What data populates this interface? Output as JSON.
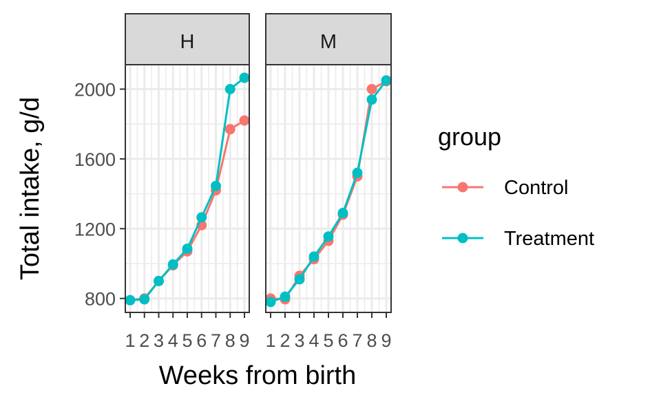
{
  "chart_data": {
    "type": "line",
    "facet_by": "panel",
    "panels": [
      "H",
      "M"
    ],
    "x": [
      1,
      2,
      3,
      4,
      5,
      6,
      7,
      8,
      9
    ],
    "xlabel": "Weeks from birth",
    "ylabel": "Total intake, g/d",
    "ylim": [
      720,
      2140
    ],
    "yticks": [
      800,
      1200,
      1600,
      2000
    ],
    "grid": true,
    "legend": {
      "title": "group",
      "position": "right"
    },
    "series": [
      {
        "name": "Control",
        "panel": "H",
        "color": "#F8766D",
        "values": [
          790,
          800,
          900,
          990,
          1070,
          1220,
          1420,
          1770,
          1820
        ]
      },
      {
        "name": "Treatment",
        "panel": "H",
        "color": "#00BFC4",
        "values": [
          790,
          795,
          900,
          995,
          1085,
          1265,
          1445,
          2000,
          2065
        ]
      },
      {
        "name": "Control",
        "panel": "M",
        "color": "#F8766D",
        "values": [
          800,
          795,
          930,
          1025,
          1130,
          1280,
          1500,
          2000,
          2045
        ]
      },
      {
        "name": "Treatment",
        "panel": "M",
        "color": "#00BFC4",
        "values": [
          780,
          810,
          910,
          1040,
          1155,
          1290,
          1520,
          1940,
          2050
        ]
      }
    ]
  }
}
